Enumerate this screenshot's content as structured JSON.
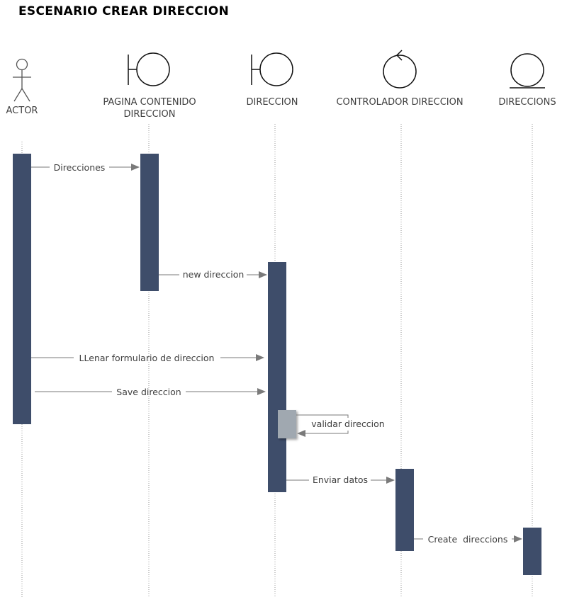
{
  "title": "ESCENARIO CREAR DIRECCION",
  "lifelines": [
    {
      "name": "ACTOR",
      "lines": [
        "ACTOR"
      ],
      "kind": "actor"
    },
    {
      "name": "PAGINA CONTENIDO DIRECCION",
      "lines": [
        "PAGINA CONTENIDO",
        "DIRECCION"
      ],
      "kind": "boundary"
    },
    {
      "name": "DIRECCION",
      "lines": [
        "DIRECCION"
      ],
      "kind": "boundary"
    },
    {
      "name": "CONTROLADOR DIRECCION",
      "lines": [
        "CONTROLADOR DIRECCION"
      ],
      "kind": "control"
    },
    {
      "name": "DIRECCIONS",
      "lines": [
        "DIRECCIONS"
      ],
      "kind": "entity"
    }
  ],
  "messages": [
    {
      "from": "ACTOR",
      "to": "PAGINA CONTENIDO DIRECCION",
      "label": "Direcciones"
    },
    {
      "from": "PAGINA CONTENIDO DIRECCION",
      "to": "DIRECCION",
      "label": "new direccion"
    },
    {
      "from": "ACTOR",
      "to": "DIRECCION",
      "label": "LLenar formulario de direccion"
    },
    {
      "from": "ACTOR",
      "to": "DIRECCION",
      "label": "Save direccion"
    },
    {
      "from": "DIRECCION",
      "to": "DIRECCION",
      "label": "validar direccion"
    },
    {
      "from": "DIRECCION",
      "to": "CONTROLADOR DIRECCION",
      "label": "Enviar datos"
    },
    {
      "from": "CONTROLADOR DIRECCION",
      "to": "DIRECCIONS",
      "label": "Create  direccions"
    }
  ],
  "colors": {
    "activation": "#3e4d6a",
    "self_activation": "#a0a8b0",
    "lifeline": "#9a9a9a",
    "arrow": "#7a7a7a",
    "text": "#3e3e3e"
  }
}
